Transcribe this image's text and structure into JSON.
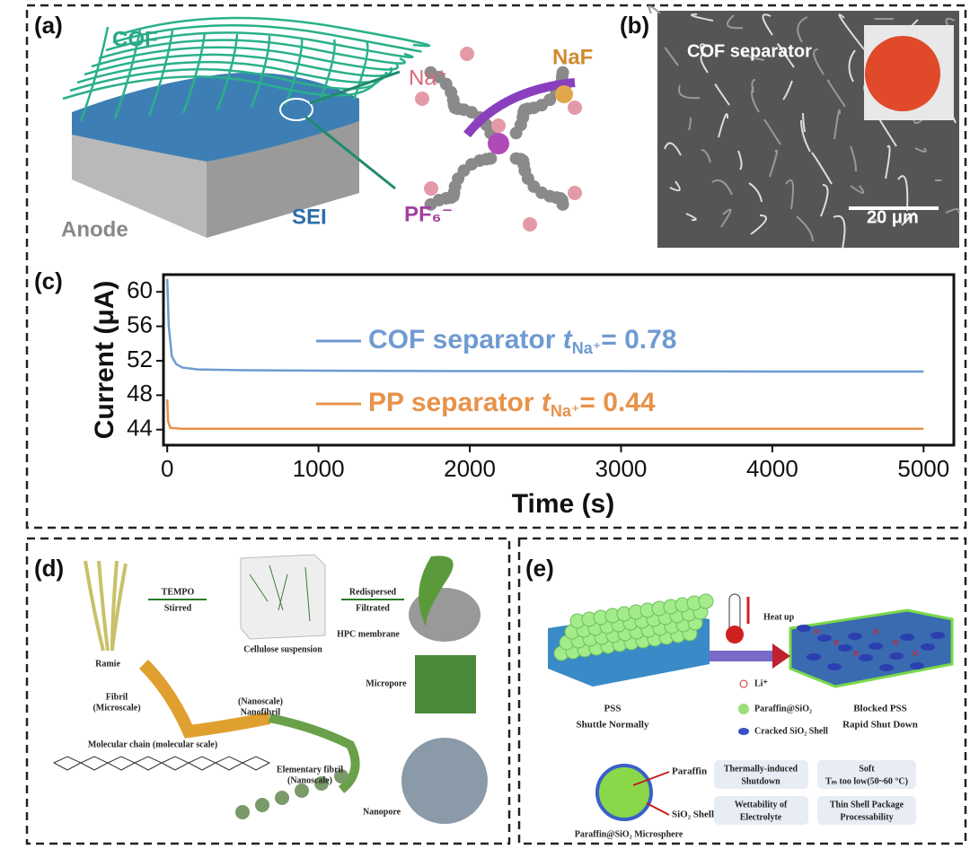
{
  "panels": {
    "a": {
      "label": "(a)",
      "cof": "COF",
      "na": "Na⁺",
      "naf": "NaF",
      "pf6": "PF₆⁻",
      "sei": "SEI",
      "anode": "Anode"
    },
    "b": {
      "label": "(b)",
      "title": "COF separator",
      "scale": "20 μm"
    },
    "d": {
      "label": "(d)",
      "step1": [
        "TEMPO",
        "Stirred"
      ],
      "step2": [
        "Redispersed",
        "Filtrated"
      ],
      "ramie": "Ramie",
      "suspension": "Cellulose suspension",
      "membrane": "HPC membrane",
      "fibril": [
        "Fibril",
        "(Microscale)"
      ],
      "nanofibril": [
        "(Nanoscale)",
        "Nanofibril"
      ],
      "micropore": "Micropore",
      "chain": "Molecular chain (molecular scale)",
      "elementary": [
        "Elementary fibril",
        "(Nanoscale)"
      ],
      "nanopore": "Nanopore"
    },
    "e": {
      "label": "(e)",
      "heat": "Heat up",
      "pss": [
        "PSS",
        "Shuttle Normally"
      ],
      "li": "Li⁺",
      "paraffin_sio2": "Paraffin@SiO₂",
      "cracked": "Cracked SiO₂ Shell",
      "blocked": [
        "Blocked PSS",
        "Rapid Shut Down"
      ],
      "paraffin": "Paraffin",
      "shell": "SiO₂ Shell",
      "microsphere": "Paraffin@SiO₂ Microsphere",
      "boxes": [
        [
          "Thermally-induced",
          "Shutdown"
        ],
        [
          "Soft",
          "Tₘ too low(50~60 °C)"
        ],
        [
          "Wettability of",
          "Electrolyte"
        ],
        [
          "Thin Shell Package",
          "Processability"
        ]
      ]
    }
  },
  "chart_data": {
    "type": "line",
    "panel_label": "(c)",
    "x_label": "Time (s)",
    "y_label": "Current (μA)",
    "xlim": [
      -25,
      5200
    ],
    "ylim": [
      42.2,
      62
    ],
    "xticks": [
      0,
      1000,
      2000,
      3000,
      4000,
      5000
    ],
    "yticks": [
      44,
      48,
      52,
      56,
      60
    ],
    "series": [
      {
        "name": "COF separator",
        "symbol": "t",
        "subscript": "Na⁺",
        "value_text": "= 0.78",
        "color": "#6f9bd1",
        "x": [
          0,
          10,
          30,
          60,
          100,
          200,
          500,
          1000,
          2000,
          3000,
          4000,
          5000
        ],
        "values": [
          61.5,
          56,
          52.5,
          51.6,
          51.2,
          51.0,
          50.9,
          50.85,
          50.8,
          50.8,
          50.75,
          50.75
        ]
      },
      {
        "name": "PP separator",
        "symbol": "t",
        "subscript": "Na⁺",
        "value_text": "= 0.44",
        "color": "#e8924a",
        "x": [
          0,
          5,
          20,
          100,
          1000,
          5000
        ],
        "values": [
          47.5,
          45,
          44.2,
          44.1,
          44.1,
          44.1
        ]
      }
    ]
  }
}
